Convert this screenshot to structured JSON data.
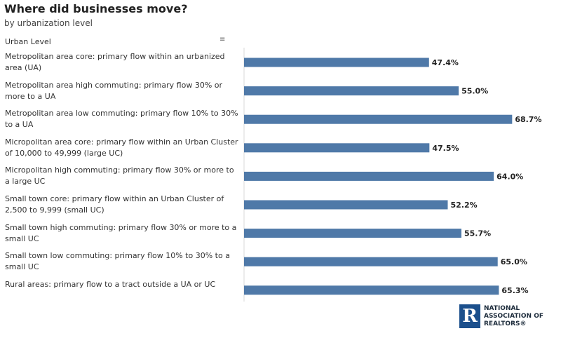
{
  "title": "Where did businesses move?",
  "subtitle": "by urbanization level",
  "column_header": "Urban Level",
  "sort_icon": "sort-descending-icon",
  "colors": {
    "bar": "#4f79a8",
    "axis": "#d9d9d9",
    "text": "#222222"
  },
  "chart_data": {
    "type": "bar",
    "orientation": "horizontal",
    "categories": [
      "Metropolitan area core: primary flow within an urbanized area (UA)",
      "Metropolitan area high commuting: primary flow 30% or more to a UA",
      "Metropolitan area low commuting: primary flow 10% to 30% to a UA",
      "Micropolitan area core: primary flow within an Urban Cluster of 10,000 to 49,999 (large UC)",
      "Micropolitan high commuting: primary flow 30% or more to a large UC",
      "Small town core: primary flow within an Urban Cluster of 2,500 to 9,999 (small UC)",
      "Small town high commuting: primary flow 30% or more to a small UC",
      "Small town low commuting: primary flow 10% to 30% to a small UC",
      "Rural areas: primary flow to a tract outside a UA or UC"
    ],
    "values": [
      47.4,
      55.0,
      68.7,
      47.5,
      64.0,
      52.2,
      55.7,
      65.0,
      65.3
    ],
    "value_labels": [
      "47.4%",
      "55.0%",
      "68.7%",
      "47.5%",
      "64.0%",
      "52.2%",
      "55.7%",
      "65.0%",
      "65.3%"
    ],
    "xlim": [
      0,
      70
    ],
    "grid": false,
    "legend": "none"
  },
  "logo": {
    "mark_text": "R",
    "lines": [
      "NATIONAL",
      "ASSOCIATION OF",
      "REALTORS®"
    ]
  }
}
